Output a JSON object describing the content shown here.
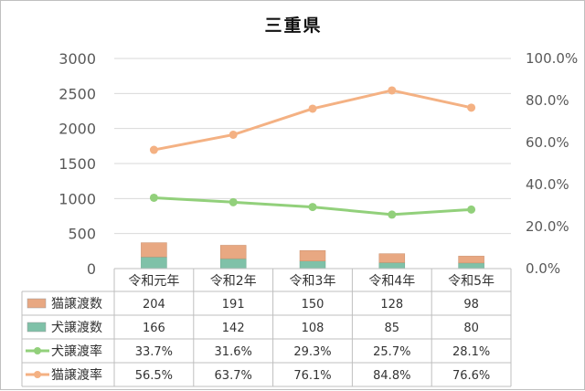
{
  "chart_data": {
    "type": "bar",
    "title": "三重県",
    "categories": [
      "令和元年",
      "令和2年",
      "令和3年",
      "令和4年",
      "令和5年"
    ],
    "y_left": {
      "min": 0,
      "max": 3000,
      "ticks": [
        "0",
        "500",
        "1000",
        "1500",
        "2000",
        "2500",
        "3000"
      ]
    },
    "y_right": {
      "min": 0,
      "max": 100,
      "ticks": [
        "0.0%",
        "20.0%",
        "40.0%",
        "60.0%",
        "80.0%",
        "100.0%"
      ]
    },
    "grid": true,
    "legend": "data-table",
    "series": [
      {
        "name": "猫譲渡数",
        "kind": "stacked-bar",
        "axis": "left",
        "color": "#E8A882",
        "values": [
          204,
          191,
          150,
          128,
          98
        ],
        "labels": [
          "204",
          "191",
          "150",
          "128",
          "98"
        ]
      },
      {
        "name": "犬譲渡数",
        "kind": "stacked-bar",
        "axis": "left",
        "color": "#7FC1A8",
        "values": [
          166,
          142,
          108,
          85,
          80
        ],
        "labels": [
          "166",
          "142",
          "108",
          "85",
          "80"
        ]
      },
      {
        "name": "犬譲渡率",
        "kind": "line",
        "axis": "right",
        "color": "#92D07B",
        "values": [
          33.7,
          31.6,
          29.3,
          25.7,
          28.1
        ],
        "labels": [
          "33.7%",
          "31.6%",
          "29.3%",
          "25.7%",
          "28.1%"
        ]
      },
      {
        "name": "猫譲渡率",
        "kind": "line",
        "axis": "right",
        "color": "#F4B183",
        "values": [
          56.5,
          63.7,
          76.1,
          84.8,
          76.6
        ],
        "labels": [
          "56.5%",
          "63.7%",
          "76.1%",
          "84.8%",
          "76.6%"
        ]
      }
    ]
  }
}
